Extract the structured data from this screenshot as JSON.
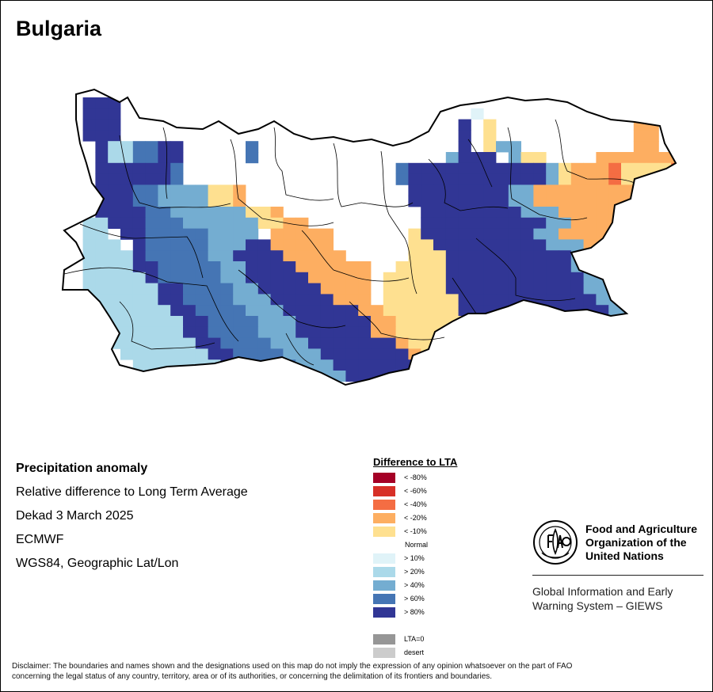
{
  "map": {
    "title": "Bulgaria",
    "colors": {
      "lt80": "#a50026",
      "lt60": "#d73027",
      "lt40": "#f46d43",
      "lt20": "#fdae61",
      "lt10": "#fee090",
      "normal": "#ffffff",
      "gt10": "#e0f3f8",
      "gt20": "#abd9e9",
      "gt40": "#74add1",
      "gt60": "#4575b4",
      "gt80": "#313695",
      "lta0": "#969696",
      "desert": "#cccccc"
    },
    "grid_rows": [
      "..AAA.............................................",
      "..AAA............................g............O...",
      "..AAA...........................b.K...........OO..",
      "..AAA...........................b.K...........OO..",
      "...AQQBBAA.....B................b.Kqq.........OO..",
      "...AQQBBAA.....B...............qbbb.qKK....OOOOOOO",
      "...AAAAAAB.................BbbbbbbbbbbbqKOOOPKKKKP",
      "...AAAAAAB.................BbbbbbbbbbbbqKOOOPKKKKP",
      "...AAABBqqqqKKO.............bbbbbbbbqqOOOOOOOOOPPP",
      "...AAABBqqqqKKO.............bbbbbbbbqqOOOOOOOOOPPP",
      "...AAAABBqqqqqqKKO...........bbbbbbbbqqqOOOOOOOPP",
      "..QQAAABBBqqqqqqKKOO.........bbbbbbbbbbqqOOOOOOOP",
      "..QQ.AABBBBBqqqq.OOOOO......KbbbbbbbbbqqOOOOOOOOP",
      "..QQQ.ABBBBBqqqbbOOOOO......KKbbbbbbbbbqqqOOOOOOO",
      "..QQQQABBBBBqqbbbbOOOOO.....KKKbbbbbbbbbbqqOOOOOO",
      "..QQQQAABBBBBqqbbbbOOOOOO..KKKKbbbbbbbbbbqqOOOOOO",
      "..QQQQQABBBBBqqbbbbbOOOOO.KKKKKbbbbbbbbbbbqqKOOOOO",
      "..QQQQQQAABBBBqqbbbbbOOOO.KKKKKbbbbbbbbbbbqqKKOOO",
      "..QQQQQQAABBBBqqqbbbbbOOO.KKKKKKbbbbbbbbbbbqqKKOO",
      "..QQQQQQQAABBBBqqqbbbbbbOOKKKKKKbbbbbbbbbbbbqqKKO",
      "...QQQQQQQAABBBBqqqbbbbbbOOKKKKKKbbbbbbbbbbbbqqKK",
      "....QQQQQQAABBBBqqqbbbbbbOOKKKKKKbbbbbbbbbbbbbqqK",
      "....QQQQQQQAABBBBqqqbbbbbbbOKKKKKKbbbbbbbbbbbbbqq",
      ".....QQQQQQQAABBBBqqqbbbbbbbOKKKKKKbbbbbbbbbbbbbq",
      "......QQQQQQQAABBBBqqqbbbbbbbOKKKKKKbbbbbbbbbbbbb",
      ".......QQQQQQQAABBBBqqqbbbbbbbOKKKKKKbbbbbbbbbbbb"
    ],
    "legend_title": "Difference to LTA",
    "legend_items": [
      {
        "label": "< -80%",
        "color": "#a50026"
      },
      {
        "label": "< -60%",
        "color": "#d73027"
      },
      {
        "label": "< -40%",
        "color": "#f46d43"
      },
      {
        "label": "< -20%",
        "color": "#fdae61"
      },
      {
        "label": "< -10%",
        "color": "#fee090"
      },
      {
        "label": "Normal",
        "color": ""
      },
      {
        "label": "> 10%",
        "color": "#e0f3f8"
      },
      {
        "label": "> 20%",
        "color": "#abd9e9"
      },
      {
        "label": "> 40%",
        "color": "#74add1"
      },
      {
        "label": "> 60%",
        "color": "#4575b4"
      },
      {
        "label": "> 80%",
        "color": "#313695"
      },
      {
        "label": "",
        "color": ""
      },
      {
        "label": "LTA=0",
        "color": "#969696"
      },
      {
        "label": "desert",
        "color": "#cccccc"
      }
    ]
  },
  "info": {
    "heading": "Precipitation anomaly",
    "subtitle": "Relative difference to Long Term Average",
    "period": "Dekad 3 March 2025",
    "model": "ECMWF",
    "projection": "WGS84, Geographic Lat/Lon"
  },
  "fao": {
    "org_line1": "Food and Agriculture",
    "org_line2": "Organization of the",
    "org_line3": "United Nations",
    "giews_line1": "Global Information and Early",
    "giews_line2": "Warning System – GIEWS"
  },
  "disclaimer": {
    "line1": "Disclaimer: The boundaries and names shown and the designations used on this map do not imply the expression of any opinion whatsoever on the part of FAO",
    "line2": "concerning the legal status of any country, territory, area or of its authorities, or concerning the delimitation of its frontiers and boundaries."
  }
}
